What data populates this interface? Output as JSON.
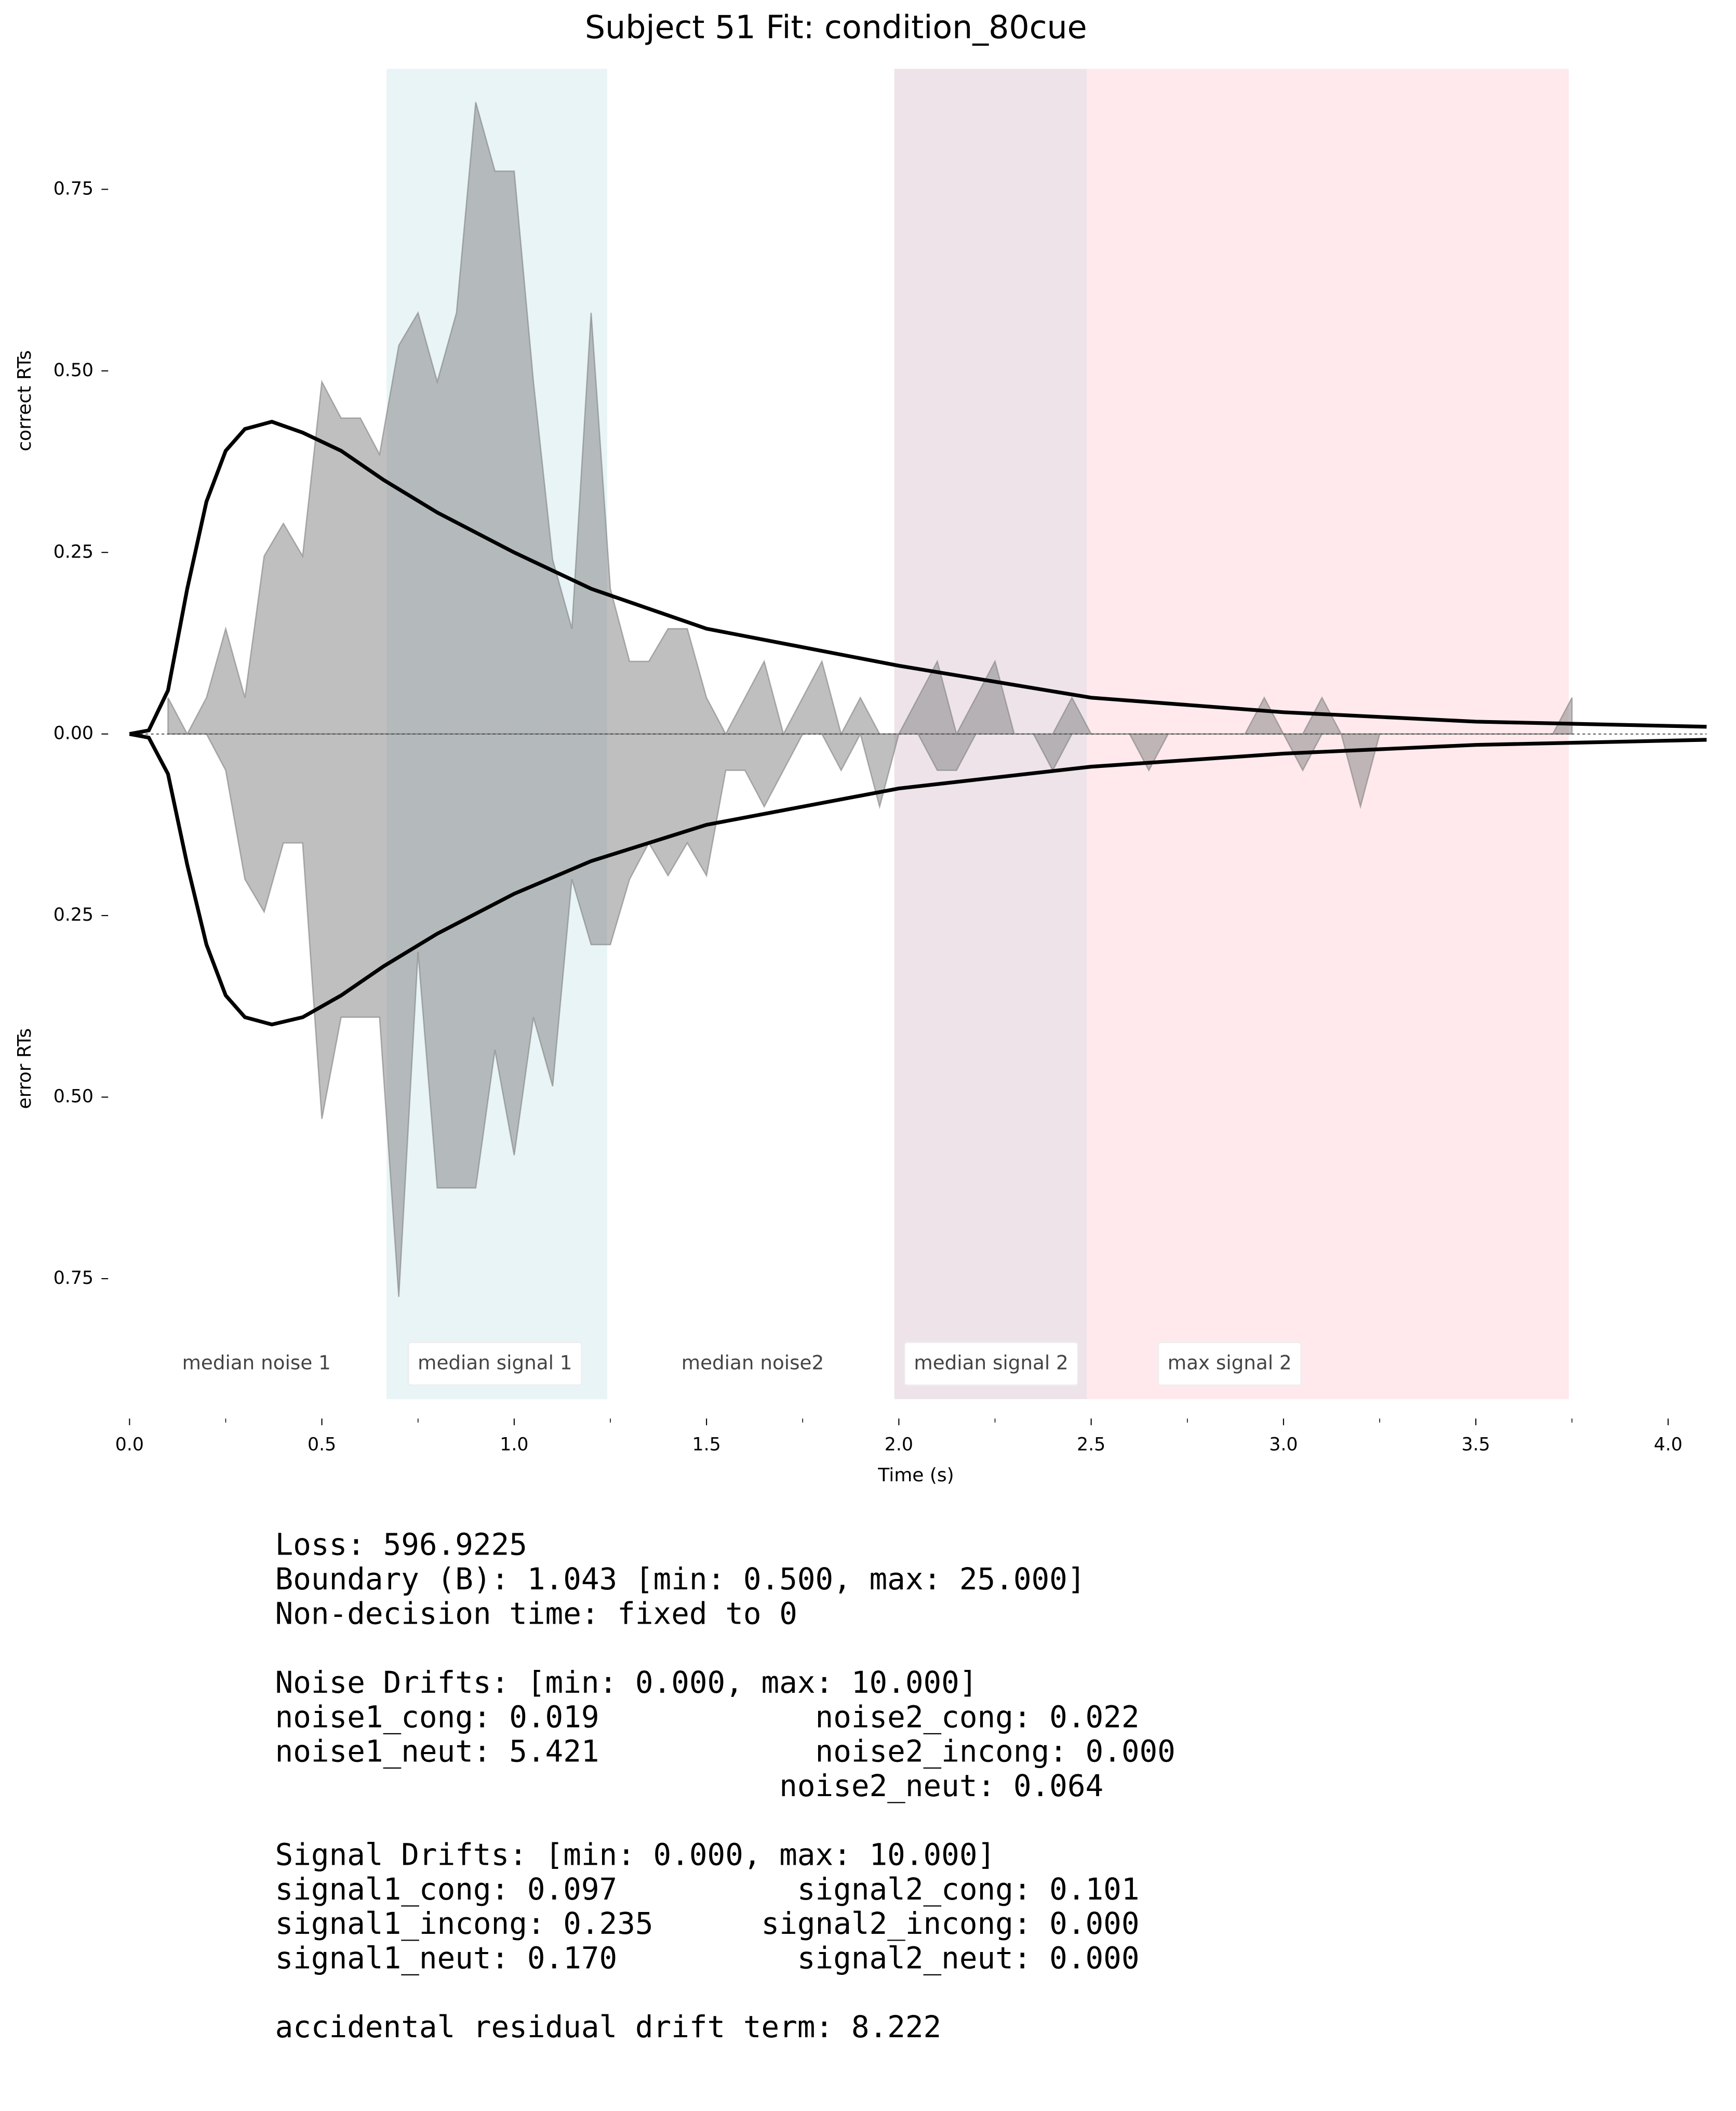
{
  "chart_data": {
    "type": "mirrored_area",
    "title": "Subject 51 Fit: condition_80cue",
    "xlabel": "Time (s)",
    "ylabel_upper": "correct RTs",
    "ylabel_lower": "error RTs",
    "xlim": [
      0,
      4.1
    ],
    "ylim": [
      -0.915,
      0.915
    ],
    "xticks": [
      {
        "value": 0,
        "label": "0.0"
      },
      0.5,
      {
        "value": 1,
        "label": "1.0"
      },
      1.5,
      {
        "value": 2,
        "label": "2.0"
      },
      2.5,
      {
        "value": 3,
        "label": "3.0"
      },
      3.5,
      {
        "value": 4,
        "label": "4.0"
      }
    ],
    "x_minor_ticks": [
      0.25,
      0.75,
      1.25,
      1.75,
      2.25,
      2.75,
      3.25,
      3.75
    ],
    "yticks": [
      {
        "value": 0.75,
        "label": "0.75"
      },
      {
        "value": 0.5,
        "label": "0.50"
      },
      {
        "value": 0.25,
        "label": "0.25"
      },
      {
        "value": 0,
        "label": "0.00"
      },
      {
        "value": -0.25,
        "label": "0.25"
      },
      {
        "value": -0.5,
        "label": "0.50"
      },
      {
        "value": -0.75,
        "label": "0.75"
      }
    ],
    "regions": [
      {
        "start": 0.67,
        "end": 1.24,
        "color": "#e8f4f6"
      },
      {
        "start": 1.99,
        "end": 2.49,
        "color": "#ede3e8"
      },
      {
        "start": 2.49,
        "end": 3.74,
        "color": "#ffe9ec"
      }
    ],
    "annotations": [
      {
        "text": "median noise 1",
        "x": 0.33,
        "boxed": false
      },
      {
        "text": "median signal 1",
        "x": 0.95,
        "boxed": true
      },
      {
        "text": "median noise2",
        "x": 1.62,
        "boxed": false
      },
      {
        "text": "median signal 2",
        "x": 2.24,
        "boxed": true
      },
      {
        "text": "max signal 2",
        "x": 2.86,
        "boxed": true
      }
    ],
    "histogram": {
      "color": "#808080",
      "x": [
        0.1,
        0.15,
        0.2,
        0.25,
        0.3,
        0.35,
        0.4,
        0.45,
        0.5,
        0.55,
        0.6,
        0.65,
        0.7,
        0.75,
        0.8,
        0.85,
        0.9,
        0.95,
        1.0,
        1.05,
        1.1,
        1.15,
        1.2,
        1.25,
        1.3,
        1.35,
        1.4,
        1.45,
        1.5,
        1.55,
        1.6,
        1.65,
        1.7,
        1.75,
        1.8,
        1.85,
        1.9,
        1.95,
        2.0,
        2.05,
        2.1,
        2.15,
        2.2,
        2.25,
        2.3,
        2.35,
        2.4,
        2.45,
        2.5,
        2.55,
        2.6,
        2.65,
        2.7,
        2.75,
        2.8,
        2.85,
        2.9,
        2.95,
        3.0,
        3.05,
        3.1,
        3.15,
        3.2,
        3.25,
        3.3,
        3.35,
        3.4,
        3.45,
        3.5,
        3.55,
        3.6,
        3.65,
        3.7,
        3.75
      ],
      "series": [
        {
          "name": "correct",
          "values": [
            0.05,
            0,
            0.05,
            0.145,
            0.05,
            0.245,
            0.29,
            0.245,
            0.485,
            0.435,
            0.435,
            0.385,
            0.535,
            0.58,
            0.485,
            0.58,
            0.87,
            0.775,
            0.775,
            0.485,
            0.24,
            0.145,
            0.58,
            0.2,
            0.1,
            0.1,
            0.145,
            0.145,
            0.05,
            0,
            0.05,
            0.1,
            0,
            0.05,
            0.1,
            0,
            0.05,
            0,
            0,
            0.05,
            0.1,
            0,
            0.05,
            0.1,
            0,
            0,
            0,
            0.05,
            0,
            0,
            0,
            0,
            0,
            0,
            0,
            0,
            0,
            0.05,
            0,
            0,
            0.05,
            0,
            0,
            0,
            0,
            0,
            0,
            0,
            0,
            0,
            0,
            0,
            0,
            0.05
          ]
        },
        {
          "name": "error",
          "values": [
            0,
            0,
            0,
            -0.05,
            -0.2,
            -0.245,
            -0.15,
            -0.15,
            -0.53,
            -0.39,
            -0.39,
            -0.39,
            -0.775,
            -0.3,
            -0.625,
            -0.625,
            -0.625,
            -0.435,
            -0.58,
            -0.39,
            -0.485,
            -0.2,
            -0.29,
            -0.29,
            -0.2,
            -0.15,
            -0.195,
            -0.15,
            -0.195,
            -0.05,
            -0.05,
            -0.1,
            -0.05,
            0,
            0,
            -0.05,
            0,
            -0.1,
            0,
            0,
            -0.05,
            -0.05,
            0,
            0,
            0,
            0,
            -0.05,
            0,
            0,
            0,
            0,
            -0.05,
            0,
            0,
            0,
            0,
            0,
            0,
            0,
            -0.05,
            0,
            0,
            -0.1,
            0,
            0,
            0,
            0,
            0,
            0,
            0,
            0,
            0,
            0,
            0
          ]
        }
      ]
    },
    "model": {
      "color": "#000000",
      "x": [
        0,
        0.05,
        0.1,
        0.15,
        0.2,
        0.25,
        0.3,
        0.37,
        0.45,
        0.55,
        0.66,
        0.8,
        1.0,
        1.2,
        1.5,
        2.0,
        2.5,
        3.0,
        3.5,
        4.1
      ],
      "series": [
        {
          "name": "model correct",
          "values": [
            0,
            0.005,
            0.06,
            0.2,
            0.32,
            0.39,
            0.42,
            0.43,
            0.415,
            0.39,
            0.35,
            0.305,
            0.25,
            0.2,
            0.145,
            0.094,
            0.05,
            0.03,
            0.017,
            0.01
          ]
        },
        {
          "name": "model error",
          "values": [
            0,
            -0.005,
            -0.055,
            -0.18,
            -0.29,
            -0.36,
            -0.39,
            -0.4,
            -0.39,
            -0.36,
            -0.32,
            -0.275,
            -0.22,
            -0.175,
            -0.125,
            -0.075,
            -0.045,
            -0.027,
            -0.015,
            -0.008
          ]
        }
      ]
    }
  },
  "fit_summary": [
    [
      "Loss: 596.9225",
      "Boundary (B): 1.043 [min: 0.500, max: 25.000]",
      "Non-decision time: fixed to 0"
    ],
    [
      "Noise Drifts: [min: 0.000, max: 10.000]",
      "noise1_cong: 0.019            noise2_cong: 0.022",
      "noise1_neut: 5.421            noise2_incong: 0.000",
      "                            noise2_neut: 0.064"
    ],
    [
      "Signal Drifts: [min: 0.000, max: 10.000]",
      "signal1_cong: 0.097          signal2_cong: 0.101",
      "signal1_incong: 0.235      signal2_incong: 0.000",
      "signal1_neut: 0.170          signal2_neut: 0.000"
    ],
    [
      "accidental residual drift term: 8.222"
    ]
  ]
}
